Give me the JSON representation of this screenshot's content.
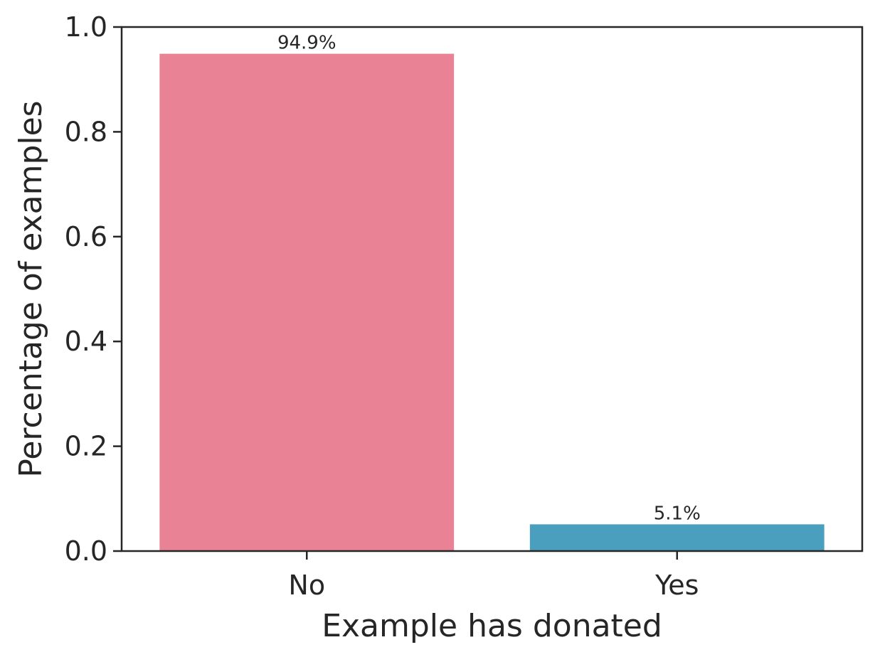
{
  "chart_data": {
    "type": "bar",
    "categories": [
      "No",
      "Yes"
    ],
    "values": [
      0.949,
      0.051
    ],
    "data_labels": [
      "94.9%",
      "5.1%"
    ],
    "colors": [
      "#e88294",
      "#4a9fbf"
    ],
    "title": "",
    "xlabel": "Example has donated",
    "ylabel": "Percentage of examples",
    "ylim": [
      0,
      1.0
    ],
    "yticks": [
      0.0,
      0.2,
      0.4,
      0.6,
      0.8,
      1.0
    ],
    "ytick_labels": [
      "0.0",
      "0.2",
      "0.4",
      "0.6",
      "0.8",
      "1.0"
    ],
    "grid": false,
    "legend": "none"
  }
}
